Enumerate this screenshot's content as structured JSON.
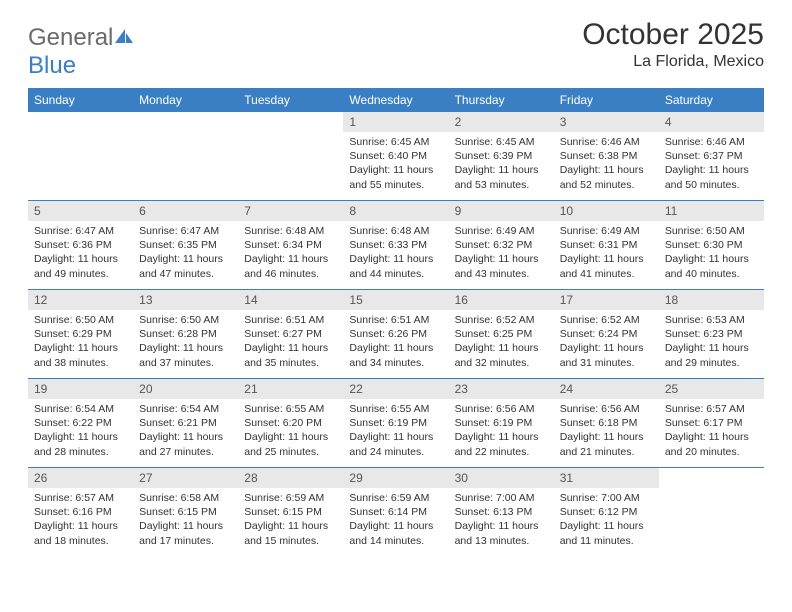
{
  "brand": {
    "part1": "General",
    "part2": "Blue"
  },
  "title": "October 2025",
  "location": "La Florida, Mexico",
  "day_headers": [
    "Sunday",
    "Monday",
    "Tuesday",
    "Wednesday",
    "Thursday",
    "Friday",
    "Saturday"
  ],
  "styling": {
    "header_bg": "#3a7fc4",
    "header_text": "#ffffff",
    "daynum_bg": "#e8e8e8",
    "daynum_text": "#555555",
    "body_text": "#333333",
    "rule_color": "#3a7fc4",
    "page_bg": "#ffffff",
    "month_fontsize": 30,
    "location_fontsize": 16,
    "header_fontsize": 12,
    "cell_fontsize": 10.5
  },
  "weeks": [
    [
      null,
      null,
      null,
      {
        "n": "1",
        "sr": "6:45 AM",
        "ss": "6:40 PM",
        "dl": "11 hours and 55 minutes."
      },
      {
        "n": "2",
        "sr": "6:45 AM",
        "ss": "6:39 PM",
        "dl": "11 hours and 53 minutes."
      },
      {
        "n": "3",
        "sr": "6:46 AM",
        "ss": "6:38 PM",
        "dl": "11 hours and 52 minutes."
      },
      {
        "n": "4",
        "sr": "6:46 AM",
        "ss": "6:37 PM",
        "dl": "11 hours and 50 minutes."
      }
    ],
    [
      {
        "n": "5",
        "sr": "6:47 AM",
        "ss": "6:36 PM",
        "dl": "11 hours and 49 minutes."
      },
      {
        "n": "6",
        "sr": "6:47 AM",
        "ss": "6:35 PM",
        "dl": "11 hours and 47 minutes."
      },
      {
        "n": "7",
        "sr": "6:48 AM",
        "ss": "6:34 PM",
        "dl": "11 hours and 46 minutes."
      },
      {
        "n": "8",
        "sr": "6:48 AM",
        "ss": "6:33 PM",
        "dl": "11 hours and 44 minutes."
      },
      {
        "n": "9",
        "sr": "6:49 AM",
        "ss": "6:32 PM",
        "dl": "11 hours and 43 minutes."
      },
      {
        "n": "10",
        "sr": "6:49 AM",
        "ss": "6:31 PM",
        "dl": "11 hours and 41 minutes."
      },
      {
        "n": "11",
        "sr": "6:50 AM",
        "ss": "6:30 PM",
        "dl": "11 hours and 40 minutes."
      }
    ],
    [
      {
        "n": "12",
        "sr": "6:50 AM",
        "ss": "6:29 PM",
        "dl": "11 hours and 38 minutes."
      },
      {
        "n": "13",
        "sr": "6:50 AM",
        "ss": "6:28 PM",
        "dl": "11 hours and 37 minutes."
      },
      {
        "n": "14",
        "sr": "6:51 AM",
        "ss": "6:27 PM",
        "dl": "11 hours and 35 minutes."
      },
      {
        "n": "15",
        "sr": "6:51 AM",
        "ss": "6:26 PM",
        "dl": "11 hours and 34 minutes."
      },
      {
        "n": "16",
        "sr": "6:52 AM",
        "ss": "6:25 PM",
        "dl": "11 hours and 32 minutes."
      },
      {
        "n": "17",
        "sr": "6:52 AM",
        "ss": "6:24 PM",
        "dl": "11 hours and 31 minutes."
      },
      {
        "n": "18",
        "sr": "6:53 AM",
        "ss": "6:23 PM",
        "dl": "11 hours and 29 minutes."
      }
    ],
    [
      {
        "n": "19",
        "sr": "6:54 AM",
        "ss": "6:22 PM",
        "dl": "11 hours and 28 minutes."
      },
      {
        "n": "20",
        "sr": "6:54 AM",
        "ss": "6:21 PM",
        "dl": "11 hours and 27 minutes."
      },
      {
        "n": "21",
        "sr": "6:55 AM",
        "ss": "6:20 PM",
        "dl": "11 hours and 25 minutes."
      },
      {
        "n": "22",
        "sr": "6:55 AM",
        "ss": "6:19 PM",
        "dl": "11 hours and 24 minutes."
      },
      {
        "n": "23",
        "sr": "6:56 AM",
        "ss": "6:19 PM",
        "dl": "11 hours and 22 minutes."
      },
      {
        "n": "24",
        "sr": "6:56 AM",
        "ss": "6:18 PM",
        "dl": "11 hours and 21 minutes."
      },
      {
        "n": "25",
        "sr": "6:57 AM",
        "ss": "6:17 PM",
        "dl": "11 hours and 20 minutes."
      }
    ],
    [
      {
        "n": "26",
        "sr": "6:57 AM",
        "ss": "6:16 PM",
        "dl": "11 hours and 18 minutes."
      },
      {
        "n": "27",
        "sr": "6:58 AM",
        "ss": "6:15 PM",
        "dl": "11 hours and 17 minutes."
      },
      {
        "n": "28",
        "sr": "6:59 AM",
        "ss": "6:15 PM",
        "dl": "11 hours and 15 minutes."
      },
      {
        "n": "29",
        "sr": "6:59 AM",
        "ss": "6:14 PM",
        "dl": "11 hours and 14 minutes."
      },
      {
        "n": "30",
        "sr": "7:00 AM",
        "ss": "6:13 PM",
        "dl": "11 hours and 13 minutes."
      },
      {
        "n": "31",
        "sr": "7:00 AM",
        "ss": "6:12 PM",
        "dl": "11 hours and 11 minutes."
      },
      null
    ]
  ],
  "labels": {
    "sunrise": "Sunrise:",
    "sunset": "Sunset:",
    "daylight": "Daylight:"
  }
}
